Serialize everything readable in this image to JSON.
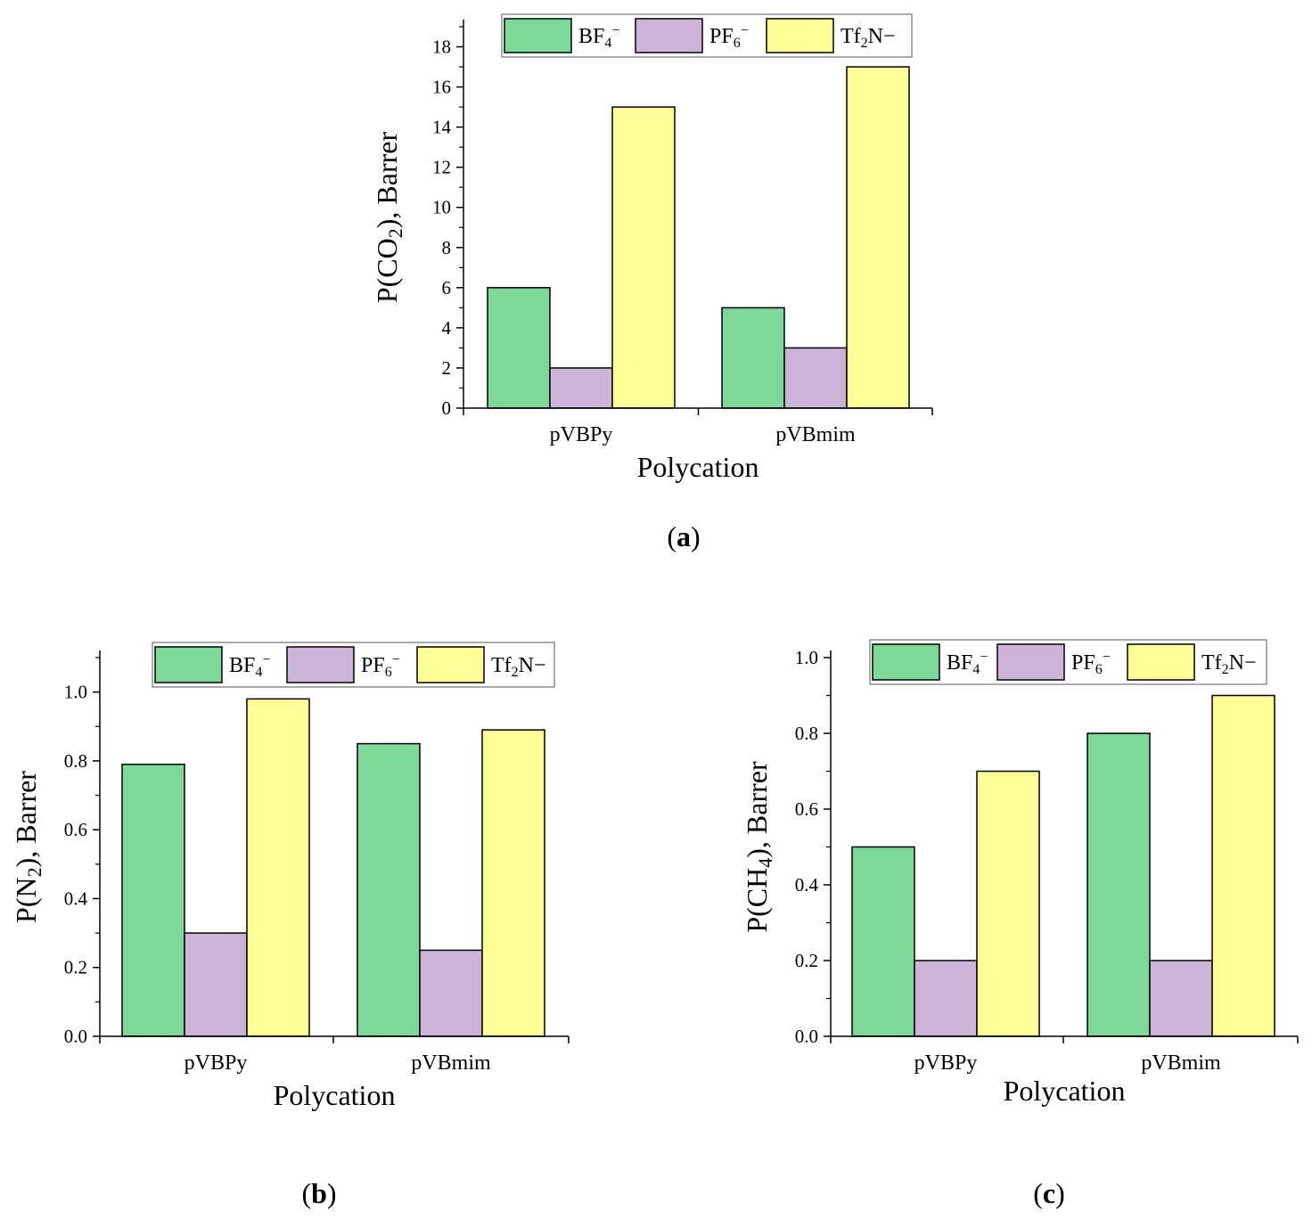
{
  "figure": {
    "panel_labels": [
      "a",
      "b",
      "c"
    ]
  },
  "legend": {
    "entries": [
      {
        "base": "BF",
        "sub": "4",
        "sup": "−"
      },
      {
        "base": "PF",
        "sub": "6",
        "sup": "−"
      },
      {
        "base": "Tf",
        "sub": "2",
        "sup": "N−",
        "mixed": true
      }
    ]
  },
  "colors": {
    "series": [
      "#7dd89a",
      "#cbb4d8",
      "#ffff99"
    ],
    "bar_stroke": "#000000"
  },
  "chart_data": [
    {
      "id": "a",
      "type": "bar",
      "title": "",
      "xlabel": "Polycation",
      "ylabel": {
        "prefix": "P(CO",
        "sub": "2",
        "suffix": "), Barrer"
      },
      "categories": [
        "pVBPy",
        "pVBmim"
      ],
      "series": [
        {
          "name": "BF4−",
          "values": [
            6,
            5
          ]
        },
        {
          "name": "PF6−",
          "values": [
            2,
            3
          ]
        },
        {
          "name": "Tf2N−",
          "values": [
            15,
            17
          ]
        }
      ],
      "ylim": [
        0,
        19
      ],
      "yticks": [
        "0",
        "2",
        "4",
        "6",
        "8",
        "10",
        "12",
        "14",
        "16",
        "18"
      ],
      "legend_position": "top"
    },
    {
      "id": "b",
      "type": "bar",
      "title": "",
      "xlabel": "Polycation",
      "ylabel": {
        "prefix": "P(N",
        "sub": "2",
        "suffix": "), Barrer"
      },
      "categories": [
        "pVBPy",
        "pVBmim"
      ],
      "series": [
        {
          "name": "BF4−",
          "values": [
            0.79,
            0.85
          ]
        },
        {
          "name": "PF6−",
          "values": [
            0.3,
            0.25
          ]
        },
        {
          "name": "Tf2N−",
          "values": [
            0.98,
            0.89
          ]
        }
      ],
      "ylim": [
        0,
        1.1
      ],
      "yticks": [
        "0.0",
        "0.2",
        "0.4",
        "0.6",
        "0.8",
        "1.0"
      ],
      "legend_position": "top"
    },
    {
      "id": "c",
      "type": "bar",
      "title": "",
      "xlabel": "Polycation",
      "ylabel": {
        "prefix": "P(CH",
        "sub": "4",
        "suffix": "), Barrer"
      },
      "categories": [
        "pVBPy",
        "pVBmim"
      ],
      "series": [
        {
          "name": "BF4−",
          "values": [
            0.5,
            0.8
          ]
        },
        {
          "name": "PF6−",
          "values": [
            0.2,
            0.2
          ]
        },
        {
          "name": "Tf2N−",
          "values": [
            0.7,
            0.9
          ]
        }
      ],
      "ylim": [
        0,
        1.0
      ],
      "yticks": [
        "0.0",
        "0.2",
        "0.4",
        "0.6",
        "0.8",
        "1.0"
      ],
      "legend_position": "top"
    }
  ]
}
